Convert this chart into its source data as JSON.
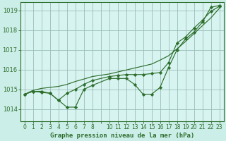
{
  "title": "Graphe pression niveau de la mer (hPa)",
  "bg_color": "#cceee8",
  "plot_bg_color": "#d8f4f0",
  "grid_color": "#9abcb8",
  "line_color": "#2d6e2d",
  "ylabel_ticks": [
    1014,
    1015,
    1016,
    1017,
    1018,
    1019
  ],
  "xlim": [
    -0.5,
    23.5
  ],
  "ylim": [
    1013.4,
    1019.4
  ],
  "x_hours_s1": [
    0,
    1,
    2,
    3,
    4,
    5,
    6,
    7,
    8,
    10,
    11,
    12,
    13,
    14,
    15,
    16,
    17,
    18,
    19,
    20,
    21,
    22,
    23
  ],
  "series1": [
    1014.75,
    1014.9,
    1014.9,
    1014.8,
    1014.45,
    1014.1,
    1014.1,
    1015.0,
    1015.2,
    1015.55,
    1015.55,
    1015.55,
    1015.25,
    1014.75,
    1014.75,
    1015.1,
    1016.1,
    1017.0,
    1017.55,
    1017.9,
    1018.4,
    1019.15,
    1019.25
  ],
  "series2": [
    1014.75,
    1014.9,
    1014.85,
    1014.8,
    1014.45,
    1014.8,
    1015.0,
    1015.25,
    1015.45,
    1015.65,
    1015.7,
    1015.75,
    1015.75,
    1015.75,
    1015.8,
    1015.85,
    1016.35,
    1017.35,
    1017.65,
    1018.1,
    1018.5,
    1018.95,
    1019.2
  ],
  "series3": [
    1014.75,
    1014.95,
    1015.05,
    1015.1,
    1015.15,
    1015.25,
    1015.4,
    1015.52,
    1015.65,
    1015.78,
    1015.88,
    1015.98,
    1016.08,
    1016.18,
    1016.28,
    1016.48,
    1016.7,
    1017.05,
    1017.42,
    1017.82,
    1018.22,
    1018.62,
    1019.1
  ]
}
